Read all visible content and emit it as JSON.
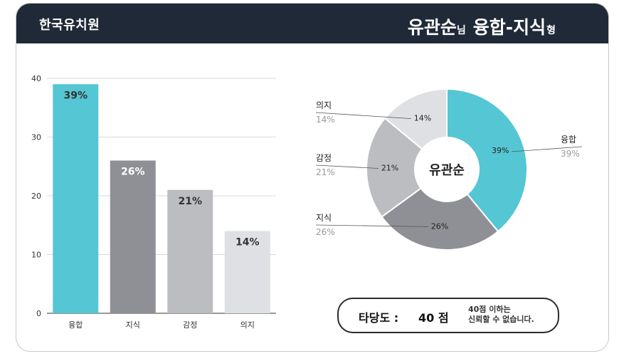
{
  "header": {
    "org": "한국유치원",
    "name": "유관순",
    "honorific": "님",
    "type_label": "융합-지식",
    "type_suffix": "형"
  },
  "colors": {
    "header_bg": "#1f2937",
    "fusion": "#55c6d3",
    "knowledge": "#8f9095",
    "emotion": "#bcbdc1",
    "will": "#dfe0e3"
  },
  "chart_data": [
    {
      "type": "bar",
      "categories": [
        "융합",
        "지식",
        "감정",
        "의지"
      ],
      "values": [
        39,
        26,
        21,
        14
      ],
      "value_labels": [
        "39%",
        "26%",
        "21%",
        "14%"
      ],
      "y_ticks": [
        0,
        10,
        20,
        30,
        40
      ],
      "ylim": [
        0,
        40
      ],
      "grid": true,
      "colors": [
        "#55c6d3",
        "#8f9095",
        "#bcbdc1",
        "#dfe0e3"
      ]
    },
    {
      "type": "pie",
      "center_label": "유관순",
      "slices": [
        {
          "label": "융합",
          "value": 39,
          "text": "39%",
          "color": "#55c6d3"
        },
        {
          "label": "지식",
          "value": 26,
          "text": "26%",
          "color": "#8f9095"
        },
        {
          "label": "감정",
          "value": 21,
          "text": "21%",
          "color": "#bcbdc1"
        },
        {
          "label": "의지",
          "value": 14,
          "text": "14%",
          "color": "#dfe0e3"
        }
      ]
    }
  ],
  "validity": {
    "label": "타당도 :",
    "score": "40 점",
    "note_line1": "40점 이하는",
    "note_line2": "신뢰할 수 없습니다."
  }
}
